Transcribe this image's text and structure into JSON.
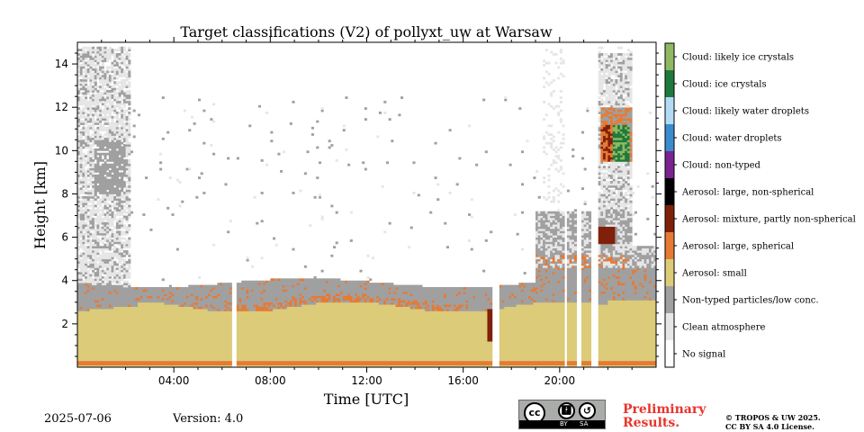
{
  "chart_data": {
    "type": "heatmap",
    "title": "Target classifications (V2) of pollyxt_uw at Warsaw",
    "xlabel": "Time [UTC]",
    "ylabel": "Height [km]",
    "x_ticks": [
      "04:00",
      "08:00",
      "12:00",
      "16:00",
      "20:00"
    ],
    "y_ticks": [
      "2",
      "4",
      "6",
      "8",
      "10",
      "12",
      "14"
    ],
    "y_tick_values": [
      2,
      4,
      6,
      8,
      10,
      12,
      14
    ],
    "x_range_hours": [
      0,
      24
    ],
    "ylim_km": [
      0,
      15
    ],
    "legend_placement": "right colorbar",
    "classes": [
      {
        "label": "Cloud: likely ice crystals",
        "color": "#8fb863"
      },
      {
        "label": "Cloud: ice crystals",
        "color": "#1e7a3c"
      },
      {
        "label": "Cloud: likely water droplets",
        "color": "#b4dbf5"
      },
      {
        "label": "Cloud: water droplets",
        "color": "#3b8ccc"
      },
      {
        "label": "Cloud: non-typed",
        "color": "#7a2390"
      },
      {
        "label": "Aerosol: large, non-spherical",
        "color": "#000000"
      },
      {
        "label": "Aerosol: mixture, partly non-spherical",
        "color": "#80200a"
      },
      {
        "label": "Aerosol: large, spherical",
        "color": "#e67a35"
      },
      {
        "label": "Aerosol: small",
        "color": "#dccb78"
      },
      {
        "label": "Non-typed particles/low conc.",
        "color": "#a0a0a0"
      },
      {
        "label": "Clean atmosphere",
        "color": "#e6e6e6"
      },
      {
        "label": "No signal",
        "color": "#ffffff"
      }
    ]
  },
  "footer": {
    "date": "2025-07-06",
    "version": "Version: 4.0",
    "preliminary_line1": "Preliminary",
    "preliminary_line2": "Results.",
    "copyright_line1": "© TROPOS & UW 2025.",
    "copyright_line2": "CC BY SA 4.0 License.",
    "license_badge_by": "BY",
    "license_badge_sa": "SA",
    "license_badge_cc": "cc"
  }
}
